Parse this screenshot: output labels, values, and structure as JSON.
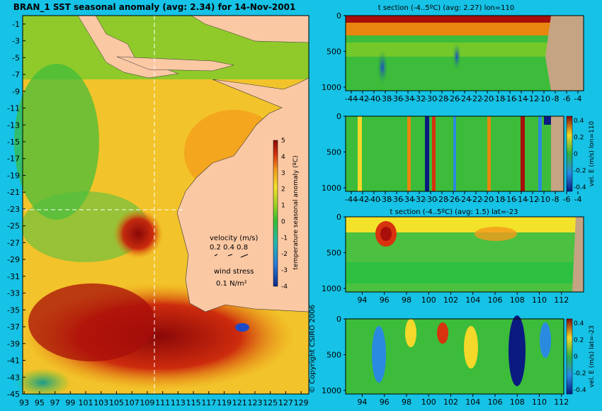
{
  "map": {
    "title": "BRAN_1 SST seasonal anomaly (avg: 2.34) for 14-Nov-2001",
    "lat_ticks": [
      "-1",
      "-3",
      "-5",
      "-7",
      "-9",
      "-11",
      "-13",
      "-15",
      "-17",
      "-19",
      "-21",
      "-23",
      "-25",
      "-27",
      "-29",
      "-31",
      "-33",
      "-35",
      "-37",
      "-39",
      "-41",
      "-43",
      "-45"
    ],
    "lon_ticks": [
      "93",
      "95",
      "97",
      "99",
      "101",
      "103",
      "105",
      "107",
      "109",
      "111",
      "113",
      "115",
      "117",
      "119",
      "121",
      "123",
      "125",
      "127",
      "129"
    ],
    "colorbar": {
      "label": "temperature seasonal anomaly (ºC)",
      "ticks": [
        "5",
        "4",
        "3",
        "2",
        "1",
        "0",
        "-1",
        "-2",
        "-3",
        "-4"
      ]
    },
    "velocity_label": "velocity (m/s)",
    "velocity_scale": "0.2 0.4 0.8",
    "wind_label": "wind stress",
    "wind_value": "0.1 N/m²",
    "copyright": "© Copyright CSIRO 2006",
    "section_lines": {
      "lat": -23,
      "lon": 110
    },
    "colors": {
      "land": "#fbc8a4",
      "background": "#16c2e6"
    }
  },
  "panels": [
    {
      "title": "t section (-4..5ºC) (avg: 2.27) lon=110",
      "x_ticks": [
        "-44",
        "-42",
        "-40",
        "-38",
        "-36",
        "-34",
        "-32",
        "-30",
        "-28",
        "-26",
        "-24",
        "-22",
        "-20",
        "-18",
        "-16",
        "-14",
        "-12",
        "-10",
        "-8",
        "-6",
        "-4"
      ],
      "y_ticks": [
        "0",
        "500",
        "1000"
      ]
    },
    {
      "title": "",
      "x_ticks": [
        "-44",
        "-42",
        "-40",
        "-38",
        "-36",
        "-34",
        "-32",
        "-30",
        "-28",
        "-26",
        "-24",
        "-22",
        "-20",
        "-18",
        "-16",
        "-14",
        "-12",
        "-10",
        "-8",
        "-6",
        "-4"
      ],
      "y_ticks": [
        "0",
        "500",
        "1000"
      ],
      "colorbar_label": "vel. E (m/s) lon=110",
      "colorbar_ticks": [
        "0.4",
        "0.2",
        "0",
        "-0.2",
        "-0.4"
      ]
    },
    {
      "title": "t section (-4..5ºC) (avg: 1.5) lat=-23",
      "x_ticks": [
        "94",
        "96",
        "98",
        "100",
        "102",
        "104",
        "106",
        "108",
        "110",
        "112"
      ],
      "y_ticks": [
        "0",
        "500",
        "1000"
      ]
    },
    {
      "title": "",
      "x_ticks": [
        "94",
        "96",
        "98",
        "100",
        "102",
        "104",
        "106",
        "108",
        "110",
        "112"
      ],
      "y_ticks": [
        "0",
        "500",
        "1000"
      ],
      "colorbar_label": "vel. E (m/s) lat=-23",
      "colorbar_ticks": [
        "0.4",
        "0.2",
        "0",
        "-0.2",
        "-0.4"
      ]
    }
  ],
  "chart_data": [
    {
      "type": "heatmap",
      "title": "BRAN_1 SST seasonal anomaly (avg: 2.34) for 14-Nov-2001",
      "xlim": [
        93,
        130
      ],
      "ylim": [
        -45,
        0
      ],
      "colorbar_range": [
        -4,
        5
      ],
      "grid": false
    },
    {
      "type": "heatmap",
      "title": "t section (-4..5ºC) (avg: 2.27) lon=110",
      "xlim": [
        -45,
        -3
      ],
      "ylim": [
        1050,
        0
      ],
      "colorbar_range": [
        -4,
        5
      ],
      "grid": false
    },
    {
      "type": "heatmap",
      "title": "",
      "xlim": [
        -45,
        -3
      ],
      "ylim": [
        1050,
        0
      ],
      "colorbar_range": [
        -0.4,
        0.4
      ],
      "grid": false
    },
    {
      "type": "heatmap",
      "title": "t section (-4..5ºC) (avg: 1.5) lat=-23",
      "xlim": [
        92.5,
        114
      ],
      "ylim": [
        1050,
        0
      ],
      "colorbar_range": [
        -4,
        5
      ],
      "grid": false
    },
    {
      "type": "heatmap",
      "title": "",
      "xlim": [
        92.5,
        114
      ],
      "ylim": [
        1050,
        0
      ],
      "colorbar_range": [
        -0.4,
        0.4
      ],
      "grid": false
    }
  ]
}
